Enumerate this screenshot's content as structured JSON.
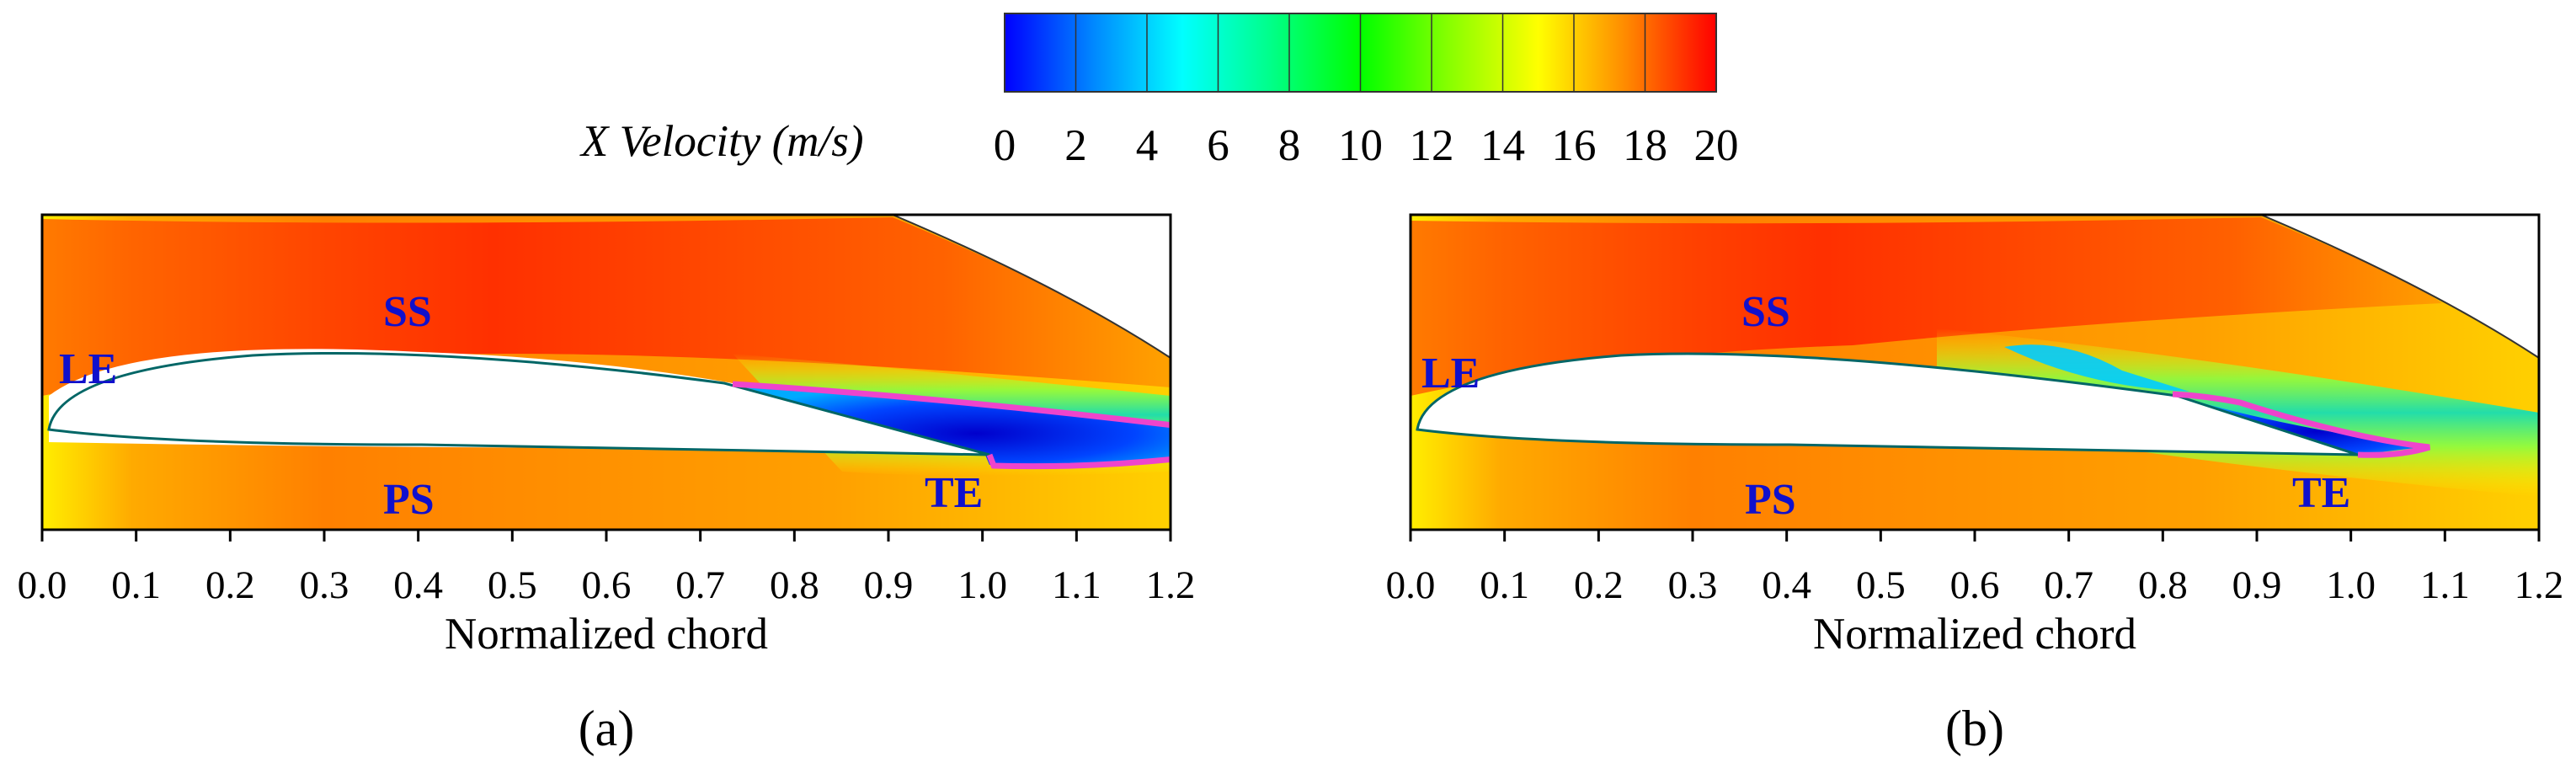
{
  "colorbar": {
    "title": "X Velocity (m/s)",
    "ticks": [
      "0",
      "2",
      "4",
      "6",
      "8",
      "10",
      "12",
      "14",
      "16",
      "18",
      "20"
    ],
    "range": [
      0,
      20
    ],
    "colors": [
      "#0000ff",
      "#0088ff",
      "#00ffff",
      "#00ff88",
      "#00ff00",
      "#88ff00",
      "#ffff00",
      "#ff8800",
      "#ff0000"
    ]
  },
  "outline_color": "#ee44cc",
  "region_label_color": "#1010cc",
  "chart_data": [
    {
      "type": "heatmap",
      "panel": "(a)",
      "xlabel": "Normalized chord",
      "xlim": [
        0.0,
        1.2
      ],
      "xticks": [
        "0.0",
        "0.1",
        "0.2",
        "0.3",
        "0.4",
        "0.5",
        "0.6",
        "0.7",
        "0.8",
        "0.9",
        "1.0",
        "1.1",
        "1.2"
      ],
      "quantity": "X Velocity (m/s)",
      "labels": [
        "LE",
        "SS",
        "PS",
        "TE"
      ],
      "separated_region_x": [
        0.73,
        1.2
      ],
      "separated_region_velocity": 0
    },
    {
      "type": "heatmap",
      "panel": "(b)",
      "xlabel": "Normalized chord",
      "xlim": [
        0.0,
        1.2
      ],
      "xticks": [
        "0.0",
        "0.1",
        "0.2",
        "0.3",
        "0.4",
        "0.5",
        "0.6",
        "0.7",
        "0.8",
        "0.9",
        "1.0",
        "1.1",
        "1.2"
      ],
      "quantity": "X Velocity (m/s)",
      "labels": [
        "LE",
        "SS",
        "PS",
        "TE"
      ],
      "separated_region_x": [
        0.81,
        1.09
      ],
      "separated_region_velocity": 0
    }
  ]
}
